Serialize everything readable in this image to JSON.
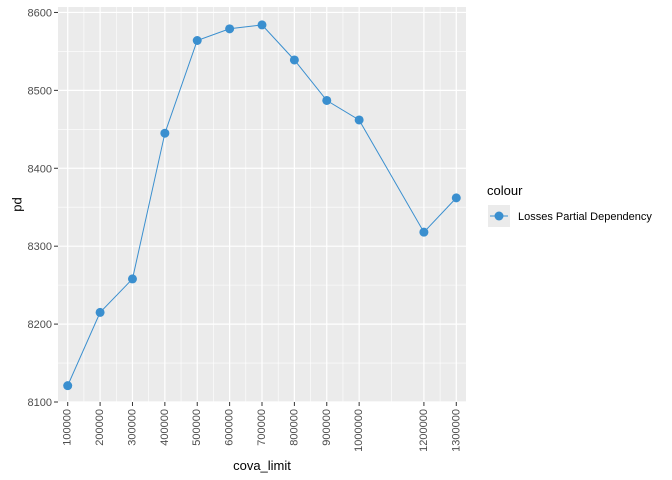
{
  "chart_data": {
    "type": "line",
    "x": [
      100000,
      200000,
      300000,
      400000,
      500000,
      600000,
      700000,
      800000,
      900000,
      1000000,
      1200000,
      1300000
    ],
    "series": [
      {
        "name": "Losses Partial Dependency",
        "values": [
          8121,
          8215,
          8258,
          8445,
          8564,
          8579,
          8584,
          8539,
          8487,
          8462,
          8318,
          8362
        ]
      }
    ],
    "x_tick_labels": [
      "100000",
      "200000",
      "300000",
      "400000",
      "500000",
      "600000",
      "700000",
      "800000",
      "900000",
      "1000000",
      "1200000",
      "1300000"
    ],
    "y_ticks": [
      8100,
      8200,
      8300,
      8400,
      8500,
      8600
    ],
    "y_tick_labels": [
      "8100",
      "8200",
      "8300",
      "8400",
      "8500",
      "8600"
    ],
    "xlabel": "cova_limit",
    "ylabel": "pd",
    "legend_title": "colour",
    "xlim": [
      70000,
      1330000
    ],
    "ylim": [
      8100,
      8607
    ],
    "grid": true,
    "legend_position": "right",
    "colors": {
      "series": "#3a8fcf",
      "panel": "#ebebeb",
      "grid": "#ffffff"
    }
  }
}
